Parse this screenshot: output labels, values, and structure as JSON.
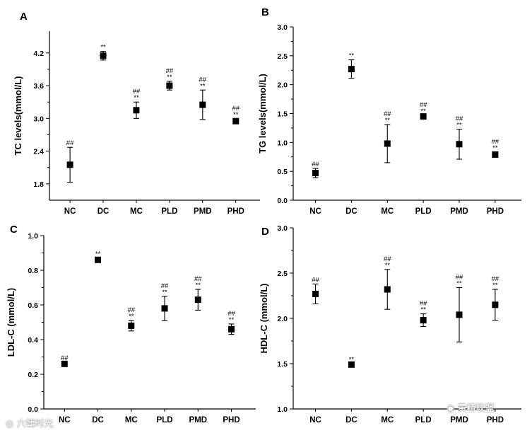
{
  "chart_data": [
    {
      "panel": "A",
      "type": "scatter",
      "ylabel": "TC levels(mmol/L)",
      "categories": [
        "NC",
        "DC",
        "MC",
        "PLD",
        "PMD",
        "PHD"
      ],
      "values": [
        2.15,
        4.15,
        3.15,
        3.6,
        3.25,
        2.95
      ],
      "errors": [
        0.32,
        0.08,
        0.15,
        0.08,
        0.27,
        0.04
      ],
      "annotations": [
        [
          "##"
        ],
        [
          "**"
        ],
        [
          "##",
          "**"
        ],
        [
          "##",
          "**"
        ],
        [
          "##",
          "**"
        ],
        [
          "##",
          "**"
        ]
      ],
      "ylim": [
        1.5,
        4.6
      ],
      "yticks": [
        1.8,
        2.4,
        3.0,
        3.6,
        4.2
      ]
    },
    {
      "panel": "B",
      "type": "scatter",
      "ylabel": "TG levels(mmol/L)",
      "categories": [
        "NC",
        "DC",
        "MC",
        "PLD",
        "PMD",
        "PHD"
      ],
      "values": [
        0.47,
        2.27,
        0.98,
        1.45,
        0.97,
        0.79
      ],
      "errors": [
        0.08,
        0.16,
        0.33,
        0.02,
        0.26,
        0.04
      ],
      "annotations": [
        [
          "##"
        ],
        [
          "**"
        ],
        [
          "##",
          "**"
        ],
        [
          "##",
          "**"
        ],
        [
          "##",
          "**"
        ],
        [
          "##",
          "**"
        ]
      ],
      "ylim": [
        0.0,
        3.0
      ],
      "yticks": [
        0.0,
        0.5,
        1.0,
        1.5,
        2.0,
        2.5,
        3.0
      ]
    },
    {
      "panel": "C",
      "type": "scatter",
      "ylabel": "LDL-C (mmol/L)",
      "categories": [
        "NC",
        "DC",
        "MC",
        "PLD",
        "PMD",
        "PHD"
      ],
      "values": [
        0.26,
        0.86,
        0.48,
        0.58,
        0.63,
        0.46
      ],
      "errors": [
        0.01,
        0.01,
        0.03,
        0.07,
        0.06,
        0.03
      ],
      "annotations": [
        [
          "##"
        ],
        [
          "**"
        ],
        [
          "##",
          "**"
        ],
        [
          "##",
          "**"
        ],
        [
          "##",
          "**"
        ],
        [
          "##",
          "**"
        ]
      ],
      "ylim": [
        0.0,
        1.0
      ],
      "yticks": [
        0.0,
        0.2,
        0.4,
        0.6,
        0.8,
        1.0
      ]
    },
    {
      "panel": "D",
      "type": "scatter",
      "ylabel": "HDL-C (mmol/L)",
      "categories": [
        "NC",
        "DC",
        "MC",
        "PLD",
        "PMD",
        "PHD"
      ],
      "values": [
        2.27,
        1.49,
        2.32,
        1.98,
        2.04,
        2.15
      ],
      "errors": [
        0.11,
        0.01,
        0.22,
        0.07,
        0.3,
        0.17
      ],
      "annotations": [
        [
          "##"
        ],
        [
          "**"
        ],
        [
          "##",
          "**"
        ],
        [
          "##",
          "**"
        ],
        [
          "##",
          "**"
        ],
        [
          "##",
          "**"
        ]
      ],
      "ylim": [
        1.0,
        3.0
      ],
      "yticks": [
        1.0,
        1.5,
        2.0,
        2.5,
        3.0
      ]
    }
  ],
  "watermarks": {
    "left": "六朝时光",
    "right": "黄精联盟"
  },
  "colors": {
    "marker": "#000000",
    "axis": "#000000",
    "background": "#ffffff"
  }
}
